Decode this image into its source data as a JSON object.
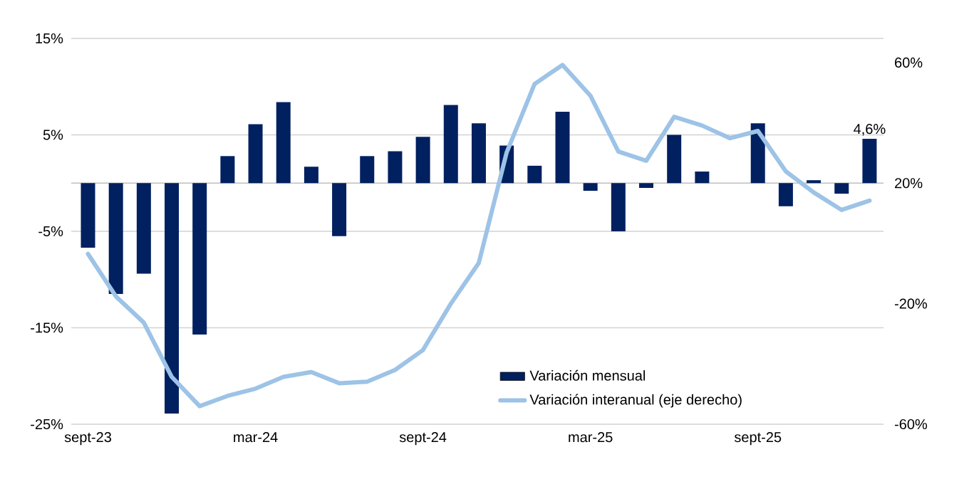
{
  "chart_data": {
    "type": "bar",
    "categories": [
      "sept-23",
      null,
      null,
      null,
      null,
      null,
      "mar-24",
      null,
      null,
      null,
      null,
      null,
      "sept-24",
      null,
      null,
      null,
      null,
      null,
      "mar-25",
      null,
      null,
      null,
      null,
      null,
      "sept-25",
      null,
      null,
      null,
      null
    ],
    "series": [
      {
        "name": "Variación mensual",
        "color": "#002060",
        "values": [
          -6.7,
          -11.5,
          -9.4,
          -23.9,
          -15.7,
          2.8,
          6.1,
          8.4,
          1.7,
          -5.5,
          2.8,
          3.3,
          4.8,
          8.1,
          6.2,
          3.9,
          1.8,
          7.4,
          -0.8,
          -5.0,
          -0.5,
          5.0,
          1.2,
          0,
          6.2,
          -2.4,
          0.3,
          -1.1,
          4.6
        ],
        "value_labels": [
          null,
          null,
          null,
          null,
          null,
          null,
          null,
          null,
          null,
          null,
          null,
          null,
          null,
          null,
          null,
          null,
          null,
          null,
          null,
          null,
          null,
          null,
          null,
          null,
          null,
          null,
          null,
          null,
          "4,6%"
        ]
      },
      {
        "name": "Variación interanual (eje derecho)",
        "type": "line",
        "axis": "y2",
        "color": "#9dc3e6",
        "values": [
          -3.5,
          -17.6,
          -26.3,
          -44.3,
          -54.0,
          -50.6,
          -48.2,
          -44.3,
          -42.7,
          -46.4,
          -45.9,
          -42.0,
          -35.4,
          -20.0,
          -6.5,
          30.2,
          52.9,
          59.2,
          49.0,
          30.5,
          27.4,
          42.0,
          39.1,
          34.9,
          37.3,
          23.9,
          16.9,
          11.1,
          14.2
        ]
      }
    ],
    "ylim": [
      -25,
      15
    ],
    "yticks": [
      {
        "value": 15,
        "label": "15%"
      },
      {
        "value": 5,
        "label": "5%"
      },
      {
        "value": -5,
        "label": "-5%"
      },
      {
        "value": -15,
        "label": "-15%"
      },
      {
        "value": -25,
        "label": "-25%"
      }
    ],
    "y2lim": [
      -60,
      68
    ],
    "y2ticks": [
      {
        "value": 60,
        "label": "60%"
      },
      {
        "value": 20,
        "label": "20%"
      },
      {
        "value": -20,
        "label": "-20%"
      },
      {
        "value": -60,
        "label": "-60%"
      }
    ],
    "grid": "y",
    "legend": "bottom right",
    "line_style": "solid",
    "marker": "none"
  }
}
